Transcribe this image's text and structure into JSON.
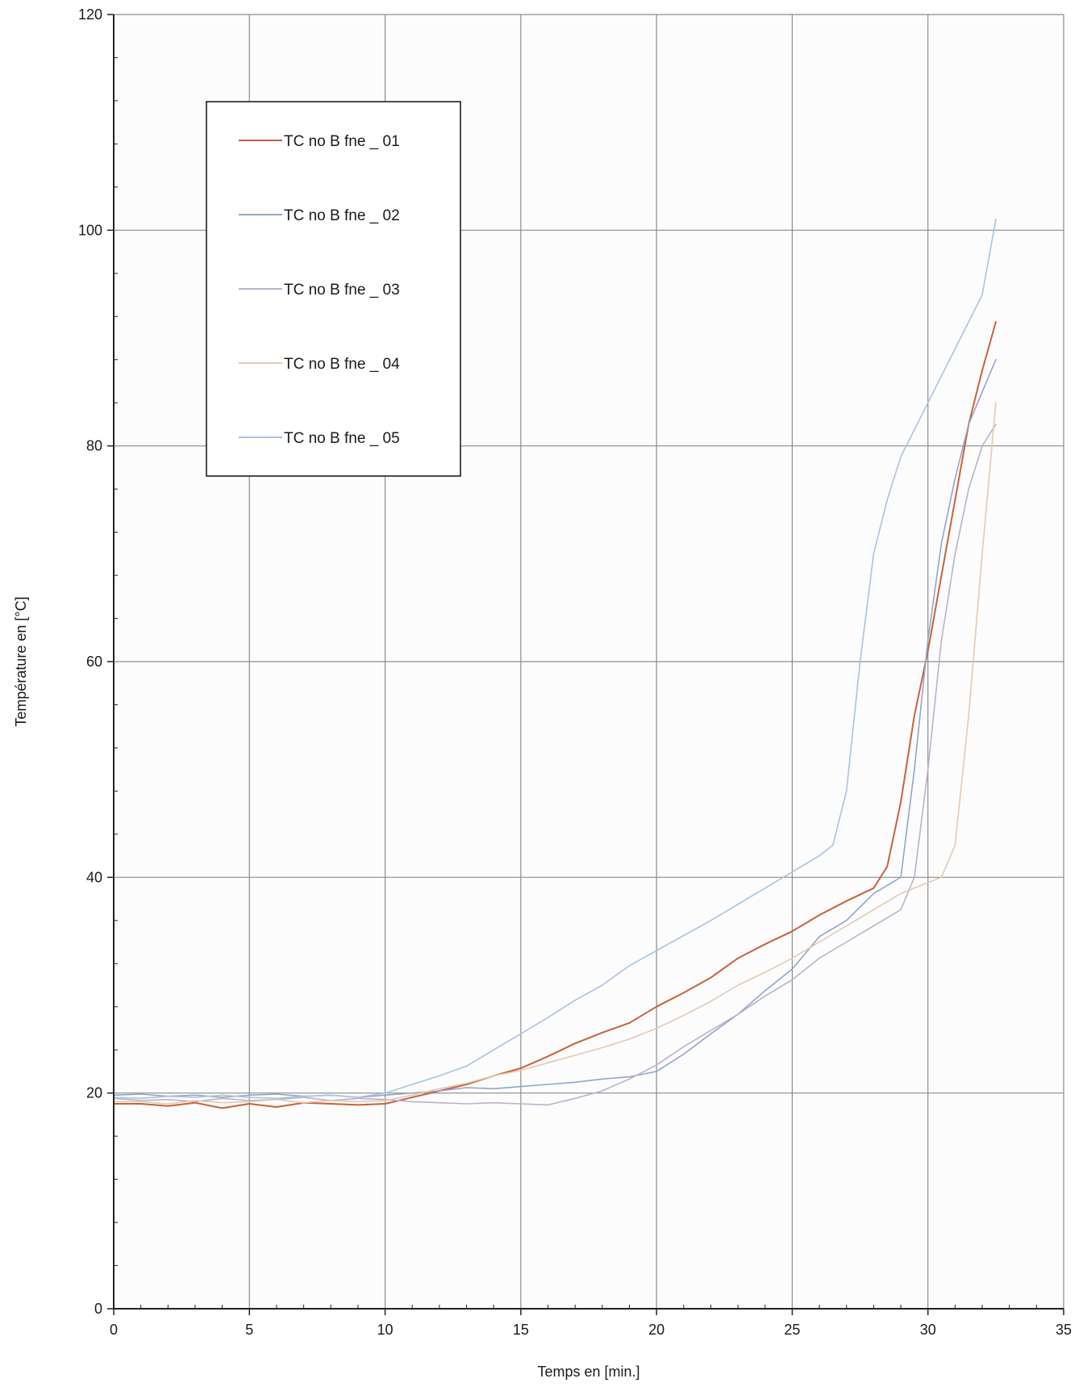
{
  "chart_data": {
    "type": "line",
    "title": "",
    "xlabel": "Temps en [min.]",
    "ylabel": "Température en [°C]",
    "xlim": [
      0,
      35
    ],
    "ylim": [
      0,
      120
    ],
    "x_ticks": [
      0,
      5,
      10,
      15,
      20,
      25,
      30,
      35
    ],
    "y_ticks": [
      0,
      20,
      40,
      60,
      80,
      100,
      120
    ],
    "x_tick_labels": [
      "0",
      "5",
      "10",
      "15",
      "20",
      "25",
      "30",
      "35"
    ],
    "y_tick_labels": [
      "0",
      "20",
      "40",
      "60",
      "80",
      "100",
      "120"
    ],
    "grid": true,
    "legend_position": "top-left",
    "series": [
      {
        "name": "TC no B fne _ 01",
        "color": "#c8623a",
        "points": [
          [
            0,
            19
          ],
          [
            1,
            19
          ],
          [
            2,
            18.8
          ],
          [
            3,
            19.1
          ],
          [
            4,
            18.6
          ],
          [
            5,
            19
          ],
          [
            6,
            18.7
          ],
          [
            7,
            19.1
          ],
          [
            8,
            19
          ],
          [
            9,
            18.9
          ],
          [
            10,
            19
          ],
          [
            11,
            19.6
          ],
          [
            12,
            20.2
          ],
          [
            13,
            20.8
          ],
          [
            14,
            21.6
          ],
          [
            15,
            22.3
          ],
          [
            16,
            23.4
          ],
          [
            17,
            24.6
          ],
          [
            18,
            25.6
          ],
          [
            19,
            26.5
          ],
          [
            20,
            28
          ],
          [
            21,
            29.3
          ],
          [
            22,
            30.7
          ],
          [
            23,
            32.5
          ],
          [
            24,
            33.8
          ],
          [
            25,
            35
          ],
          [
            26,
            36.5
          ],
          [
            27,
            37.8
          ],
          [
            28,
            39
          ],
          [
            28.5,
            41
          ],
          [
            29,
            47
          ],
          [
            29.5,
            55
          ],
          [
            30,
            61
          ],
          [
            30.5,
            68
          ],
          [
            31,
            75
          ],
          [
            31.5,
            82
          ],
          [
            32,
            87
          ],
          [
            32.5,
            91.5
          ]
        ]
      },
      {
        "name": "TC no B fne _ 02",
        "color": "#8fa6cc",
        "points": [
          [
            0,
            19.8
          ],
          [
            1,
            19.9
          ],
          [
            2,
            19.7
          ],
          [
            3,
            19.8
          ],
          [
            4,
            19.6
          ],
          [
            5,
            19.8
          ],
          [
            6,
            19.9
          ],
          [
            7,
            19.7
          ],
          [
            8,
            19.8
          ],
          [
            9,
            19.6
          ],
          [
            10,
            19.8
          ],
          [
            11,
            20
          ],
          [
            12,
            20.2
          ],
          [
            13,
            20.5
          ],
          [
            14,
            20.4
          ],
          [
            15,
            20.6
          ],
          [
            16,
            20.8
          ],
          [
            17,
            21
          ],
          [
            18,
            21.3
          ],
          [
            19,
            21.5
          ],
          [
            20,
            22
          ],
          [
            21,
            23.6
          ],
          [
            22,
            25.5
          ],
          [
            23,
            27.3
          ],
          [
            24,
            29.5
          ],
          [
            25,
            31.5
          ],
          [
            25.5,
            33
          ],
          [
            26,
            34.5
          ],
          [
            27,
            36
          ],
          [
            28,
            38.5
          ],
          [
            29,
            40
          ],
          [
            29.5,
            50
          ],
          [
            30,
            62
          ],
          [
            30.5,
            71
          ],
          [
            31,
            77
          ],
          [
            31.5,
            82
          ],
          [
            32,
            85
          ],
          [
            32.5,
            88
          ]
        ]
      },
      {
        "name": "TC no B fne _ 03",
        "color": "#b9b2cc",
        "points": [
          [
            0,
            19.5
          ],
          [
            1,
            19.3
          ],
          [
            2,
            19.4
          ],
          [
            3,
            19.2
          ],
          [
            4,
            19.5
          ],
          [
            5,
            19.3
          ],
          [
            6,
            19.4
          ],
          [
            7,
            19.6
          ],
          [
            8,
            19.3
          ],
          [
            9,
            19.5
          ],
          [
            10,
            19.4
          ],
          [
            11,
            19.2
          ],
          [
            12,
            19.1
          ],
          [
            13,
            19
          ],
          [
            14,
            19.1
          ],
          [
            15,
            19
          ],
          [
            16,
            18.9
          ],
          [
            17,
            19.5
          ],
          [
            18,
            20.2
          ],
          [
            19,
            21.3
          ],
          [
            20,
            22.6
          ],
          [
            21,
            24.3
          ],
          [
            22,
            25.8
          ],
          [
            23,
            27.3
          ],
          [
            24,
            29
          ],
          [
            25,
            30.5
          ],
          [
            26,
            32.5
          ],
          [
            27,
            34
          ],
          [
            28,
            35.5
          ],
          [
            29,
            37
          ],
          [
            29.5,
            40
          ],
          [
            30,
            50
          ],
          [
            30.5,
            62
          ],
          [
            31,
            70
          ],
          [
            31.5,
            76
          ],
          [
            32,
            80
          ],
          [
            32.5,
            82
          ]
        ]
      },
      {
        "name": "TC no B fne _ 04",
        "color": "#e3c9b4",
        "points": [
          [
            0,
            19.2
          ],
          [
            1,
            19.2
          ],
          [
            2,
            19
          ],
          [
            3,
            19.3
          ],
          [
            4,
            19.1
          ],
          [
            5,
            19.2
          ],
          [
            6,
            19.4
          ],
          [
            7,
            19.1
          ],
          [
            8,
            19.3
          ],
          [
            9,
            19.2
          ],
          [
            10,
            19.3
          ],
          [
            11,
            19.8
          ],
          [
            12,
            20.4
          ],
          [
            13,
            20.9
          ],
          [
            14,
            21.6
          ],
          [
            15,
            22.1
          ],
          [
            16,
            22.8
          ],
          [
            17,
            23.5
          ],
          [
            18,
            24.2
          ],
          [
            19,
            25
          ],
          [
            20,
            26
          ],
          [
            21,
            27.2
          ],
          [
            22,
            28.5
          ],
          [
            23,
            30
          ],
          [
            24,
            31.2
          ],
          [
            25,
            32.5
          ],
          [
            26,
            34
          ],
          [
            27,
            35.5
          ],
          [
            28,
            37
          ],
          [
            29,
            38.5
          ],
          [
            30,
            39.5
          ],
          [
            30.5,
            40
          ],
          [
            31,
            43
          ],
          [
            31.5,
            55
          ],
          [
            32,
            70
          ],
          [
            32.5,
            84
          ]
        ]
      },
      {
        "name": "TC no B fne _ 05",
        "color": "#a9c3df",
        "points": [
          [
            0,
            19.6
          ],
          [
            1,
            19.5
          ],
          [
            2,
            19.7
          ],
          [
            3,
            19.6
          ],
          [
            4,
            19.8
          ],
          [
            5,
            19.6
          ],
          [
            6,
            19.5
          ],
          [
            7,
            19.7
          ],
          [
            8,
            19.8
          ],
          [
            9,
            19.6
          ],
          [
            10,
            20
          ],
          [
            11,
            20.8
          ],
          [
            12,
            21.6
          ],
          [
            13,
            22.5
          ],
          [
            14,
            24
          ],
          [
            15,
            25.5
          ],
          [
            16,
            27
          ],
          [
            17,
            28.6
          ],
          [
            18,
            30
          ],
          [
            19,
            31.8
          ],
          [
            20,
            33.2
          ],
          [
            21,
            34.6
          ],
          [
            22,
            36
          ],
          [
            23,
            37.5
          ],
          [
            24,
            39
          ],
          [
            25,
            40.5
          ],
          [
            26,
            42
          ],
          [
            26.5,
            43
          ],
          [
            27,
            48
          ],
          [
            27.5,
            60
          ],
          [
            28,
            70
          ],
          [
            28.5,
            75
          ],
          [
            29,
            79
          ],
          [
            30,
            84
          ],
          [
            31,
            89
          ],
          [
            32,
            94
          ],
          [
            32.5,
            101
          ]
        ]
      }
    ]
  }
}
